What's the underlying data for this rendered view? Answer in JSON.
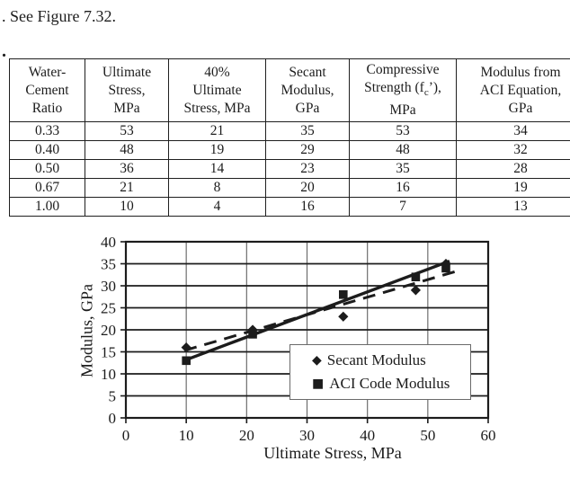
{
  "page": {
    "caption": ". See Figure 7.32.",
    "list_marker": "."
  },
  "icons": {
    "diamond": "◆",
    "square": "■"
  },
  "colors": {
    "ink": "#1c1c1c",
    "grid_horizontal": "#1c1c1c",
    "grid_vertical": "#6e6e6e",
    "plot_border": "#1c1c1c",
    "legend_border": "#6a6a6a"
  },
  "table": {
    "columns": [
      "Water-\nCement\nRatio",
      "Ultimate\nStress,\nMPa",
      "40%\nUltimate\nStress, MPa",
      "Secant\nModulus,\nGPa",
      "Compressive\nStrength (fc’),\nMPa",
      "Modulus from\nACI Equation,\nGPa"
    ],
    "rows": [
      [
        "0.33",
        "53",
        "21",
        "35",
        "53",
        "34"
      ],
      [
        "0.40",
        "48",
        "19",
        "29",
        "48",
        "32"
      ],
      [
        "0.50",
        "36",
        "14",
        "23",
        "35",
        "28"
      ],
      [
        "0.67",
        "21",
        "8",
        "20",
        "16",
        "19"
      ],
      [
        "1.00",
        "10",
        "4",
        "16",
        "7",
        "13"
      ]
    ]
  },
  "chart_data": {
    "type": "scatter",
    "title": "",
    "xlabel": "Ultimate Stress, MPa",
    "ylabel": "Modulus, GPa",
    "xlim": [
      0,
      60
    ],
    "ylim": [
      0,
      40
    ],
    "xticks": [
      0,
      10,
      20,
      30,
      40,
      50,
      60
    ],
    "yticks": [
      0,
      5,
      10,
      15,
      20,
      25,
      30,
      35,
      40
    ],
    "grid": true,
    "legend_position": "inside-bottom-right",
    "series": [
      {
        "name": "Secant Modulus",
        "marker": "diamond",
        "x": [
          10,
          21,
          36,
          48,
          53
        ],
        "y": [
          16,
          20,
          23,
          29,
          35
        ],
        "trendline": {
          "style": "dashed",
          "x1": 9.7,
          "y1": 15.3,
          "x2": 54.5,
          "y2": 33.2
        }
      },
      {
        "name": "ACI Code Modulus",
        "marker": "square",
        "x": [
          10,
          21,
          36,
          48,
          53
        ],
        "y": [
          13,
          19,
          28,
          32,
          34
        ],
        "trendline": {
          "style": "solid",
          "x1": 9.6,
          "y1": 13.0,
          "x2": 53.6,
          "y2": 35.6
        }
      }
    ]
  }
}
